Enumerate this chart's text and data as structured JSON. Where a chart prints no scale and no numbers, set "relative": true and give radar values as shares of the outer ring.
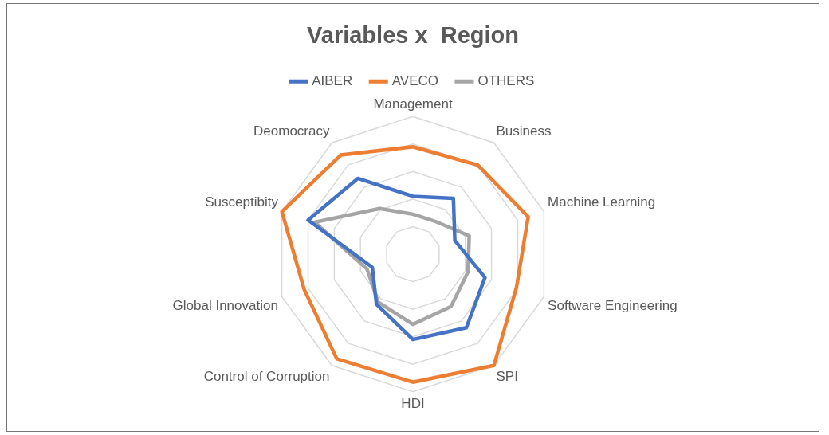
{
  "chart_data": {
    "type": "radar",
    "title": "Variables x  Region",
    "relative": true,
    "grid": true,
    "legend": "top",
    "marker": "none",
    "categories": [
      "Management",
      "Business",
      "Machine Learning",
      "Software Engineering",
      "SPI",
      "HDI",
      "Control of Corruption",
      "Global Innovation",
      "Susceptibity",
      "Deomocracy"
    ],
    "series": [
      {
        "name": "AIBER",
        "color": "#4472c4",
        "values": [
          0.42,
          0.5,
          0.32,
          0.55,
          0.66,
          0.62,
          0.45,
          0.31,
          0.8,
          0.68
        ]
      },
      {
        "name": "AVECO",
        "color": "#ed7d31",
        "values": [
          0.78,
          0.8,
          0.88,
          0.79,
          1.0,
          0.93,
          0.94,
          0.83,
          1.0,
          0.89
        ]
      },
      {
        "name": "OTHERS",
        "color": "#a5a5a5",
        "values": [
          0.29,
          0.29,
          0.43,
          0.42,
          0.47,
          0.51,
          0.43,
          0.35,
          0.75,
          0.41
        ]
      }
    ]
  }
}
